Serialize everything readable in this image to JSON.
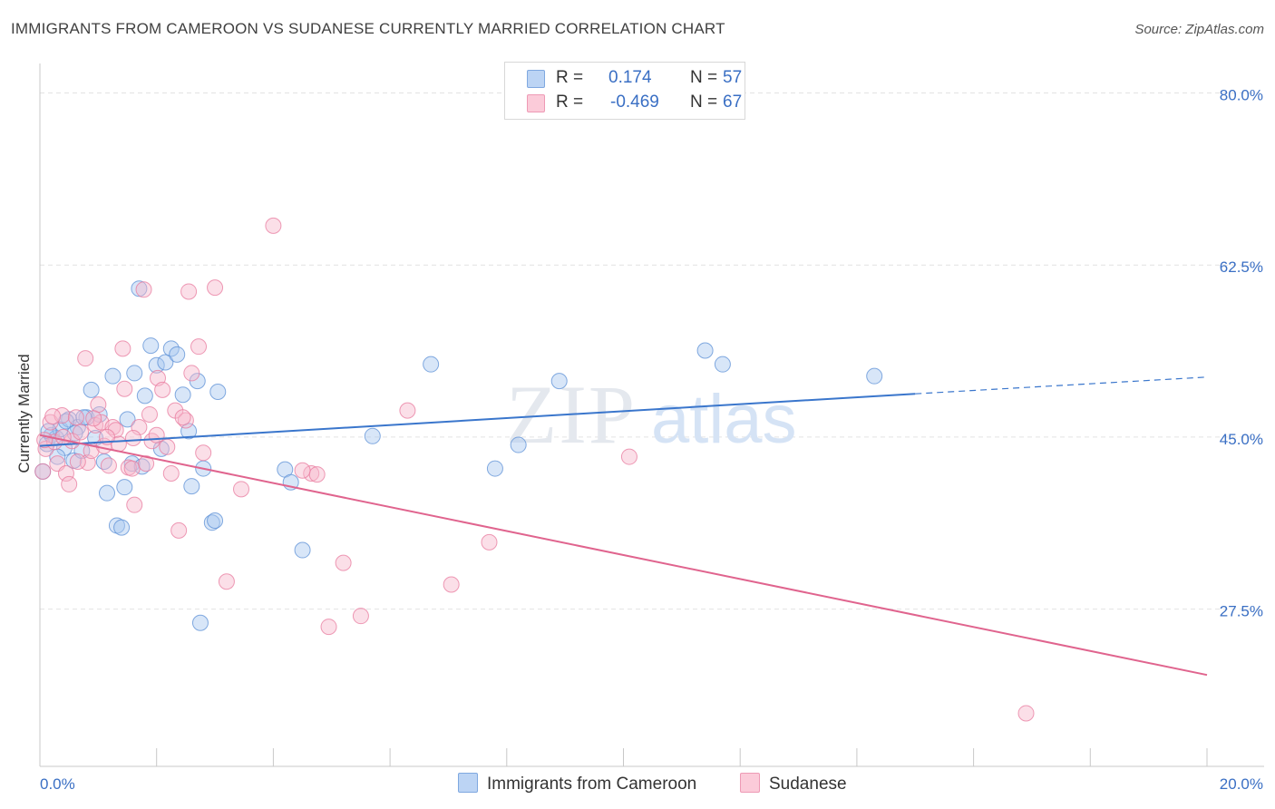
{
  "title": "IMMIGRANTS FROM CAMEROON VS SUDANESE CURRENTLY MARRIED CORRELATION CHART",
  "source": "Source: ZipAtlas.com",
  "watermark": {
    "zip": "ZIP",
    "atlas": "atlas"
  },
  "legend_top": {
    "rows": [
      {
        "r_label": "R =",
        "r_value": "0.174",
        "n_label": "N =",
        "n_value": "57",
        "color": "#a9c7f0"
      },
      {
        "r_label": "R =",
        "r_value": "-0.469",
        "n_label": "N =",
        "n_value": "67",
        "color": "#f7b7cb"
      }
    ]
  },
  "chart_data": {
    "type": "scatter",
    "title": "IMMIGRANTS FROM CAMEROON VS SUDANESE CURRENTLY MARRIED CORRELATION CHART",
    "xlabel": "",
    "ylabel": "Currently Married",
    "xlim": [
      0,
      20
    ],
    "ylim": [
      11.5,
      83
    ],
    "x_tick_labels": [
      "0.0%",
      "20.0%"
    ],
    "y_ticks": [
      27.5,
      45.0,
      62.5,
      80.0
    ],
    "y_tick_labels": [
      "27.5%",
      "45.0%",
      "62.5%",
      "80.0%"
    ],
    "grid": "horizontal dashed",
    "legend_position": "bottom",
    "series": [
      {
        "name": "Immigrants from Cameroon",
        "color": "#a9c7f0",
        "stroke": "#5b8fd6",
        "trend_color": "#3a76cc",
        "trend": {
          "x": [
            0,
            15.0
          ],
          "y": [
            44.1,
            49.4
          ],
          "dashed_to_x": 20,
          "dashed_to_y": 51.1
        },
        "points": [
          [
            0.05,
            41.5
          ],
          [
            0.12,
            44.3
          ],
          [
            0.2,
            45.2
          ],
          [
            0.28,
            44.9
          ],
          [
            0.35,
            45.8
          ],
          [
            0.42,
            43.9
          ],
          [
            0.5,
            46.8
          ],
          [
            0.58,
            42.6
          ],
          [
            0.65,
            46.0
          ],
          [
            0.72,
            43.6
          ],
          [
            0.8,
            47.0
          ],
          [
            0.88,
            49.8
          ],
          [
            0.95,
            44.9
          ],
          [
            1.02,
            47.3
          ],
          [
            1.1,
            42.5
          ],
          [
            1.15,
            39.3
          ],
          [
            1.25,
            51.2
          ],
          [
            1.32,
            36.0
          ],
          [
            1.4,
            35.8
          ],
          [
            1.45,
            39.9
          ],
          [
            1.5,
            46.8
          ],
          [
            1.58,
            42.3
          ],
          [
            1.62,
            51.5
          ],
          [
            1.7,
            60.1
          ],
          [
            1.75,
            42.0
          ],
          [
            1.8,
            49.2
          ],
          [
            1.9,
            54.3
          ],
          [
            2.0,
            52.3
          ],
          [
            2.08,
            43.8
          ],
          [
            2.15,
            52.6
          ],
          [
            2.25,
            54.0
          ],
          [
            2.35,
            53.4
          ],
          [
            2.45,
            49.3
          ],
          [
            2.55,
            45.6
          ],
          [
            2.6,
            40.0
          ],
          [
            2.75,
            26.1
          ],
          [
            2.8,
            41.8
          ],
          [
            2.95,
            36.3
          ],
          [
            3.0,
            36.5
          ],
          [
            3.05,
            49.6
          ],
          [
            4.2,
            41.7
          ],
          [
            4.3,
            40.4
          ],
          [
            4.5,
            33.5
          ],
          [
            5.7,
            45.1
          ],
          [
            6.7,
            52.4
          ],
          [
            7.8,
            41.8
          ],
          [
            8.2,
            44.2
          ],
          [
            8.9,
            50.7
          ],
          [
            11.4,
            53.8
          ],
          [
            11.7,
            52.4
          ],
          [
            14.3,
            51.2
          ],
          [
            0.15,
            45.6
          ],
          [
            0.3,
            43.0
          ],
          [
            0.45,
            46.6
          ],
          [
            0.6,
            45.4
          ],
          [
            0.75,
            47.0
          ],
          [
            2.7,
            50.7
          ]
        ]
      },
      {
        "name": "Sudanese",
        "color": "#f7b7cb",
        "stroke": "#e8799d",
        "trend_color": "#e0648e",
        "trend": {
          "x": [
            0,
            20
          ],
          "y": [
            45.2,
            20.8
          ]
        },
        "points": [
          [
            0.05,
            41.5
          ],
          [
            0.1,
            43.8
          ],
          [
            0.18,
            46.5
          ],
          [
            0.25,
            44.5
          ],
          [
            0.3,
            42.3
          ],
          [
            0.38,
            47.2
          ],
          [
            0.45,
            41.3
          ],
          [
            0.5,
            40.2
          ],
          [
            0.55,
            44.6
          ],
          [
            0.62,
            47.0
          ],
          [
            0.7,
            45.5
          ],
          [
            0.78,
            53.0
          ],
          [
            0.82,
            42.4
          ],
          [
            0.88,
            43.6
          ],
          [
            0.95,
            46.2
          ],
          [
            1.0,
            48.3
          ],
          [
            1.05,
            46.5
          ],
          [
            1.1,
            44.1
          ],
          [
            1.18,
            42.1
          ],
          [
            1.25,
            46.0
          ],
          [
            1.3,
            45.7
          ],
          [
            1.35,
            44.3
          ],
          [
            1.42,
            54.0
          ],
          [
            1.45,
            49.9
          ],
          [
            1.52,
            41.9
          ],
          [
            1.58,
            41.8
          ],
          [
            1.62,
            38.1
          ],
          [
            1.7,
            46.0
          ],
          [
            1.78,
            60.0
          ],
          [
            1.82,
            42.3
          ],
          [
            1.88,
            47.3
          ],
          [
            1.92,
            44.6
          ],
          [
            2.02,
            51.0
          ],
          [
            2.1,
            49.8
          ],
          [
            2.18,
            44.0
          ],
          [
            2.25,
            41.3
          ],
          [
            2.32,
            47.7
          ],
          [
            2.38,
            35.5
          ],
          [
            2.5,
            46.7
          ],
          [
            2.55,
            59.8
          ],
          [
            2.6,
            51.5
          ],
          [
            2.72,
            54.2
          ],
          [
            2.8,
            43.4
          ],
          [
            3.0,
            60.2
          ],
          [
            3.2,
            30.3
          ],
          [
            3.45,
            39.7
          ],
          [
            4.0,
            66.5
          ],
          [
            4.65,
            41.3
          ],
          [
            4.75,
            41.2
          ],
          [
            4.95,
            25.7
          ],
          [
            5.2,
            32.2
          ],
          [
            5.5,
            26.8
          ],
          [
            6.3,
            47.7
          ],
          [
            7.05,
            30.0
          ],
          [
            7.7,
            34.3
          ],
          [
            10.1,
            43.0
          ],
          [
            16.9,
            16.9
          ],
          [
            0.08,
            44.7
          ],
          [
            0.22,
            47.1
          ],
          [
            0.4,
            45.0
          ],
          [
            0.65,
            42.5
          ],
          [
            0.92,
            46.9
          ],
          [
            1.15,
            45.0
          ],
          [
            1.6,
            44.9
          ],
          [
            2.0,
            45.2
          ],
          [
            2.45,
            47.0
          ],
          [
            4.5,
            41.6
          ]
        ]
      }
    ]
  }
}
